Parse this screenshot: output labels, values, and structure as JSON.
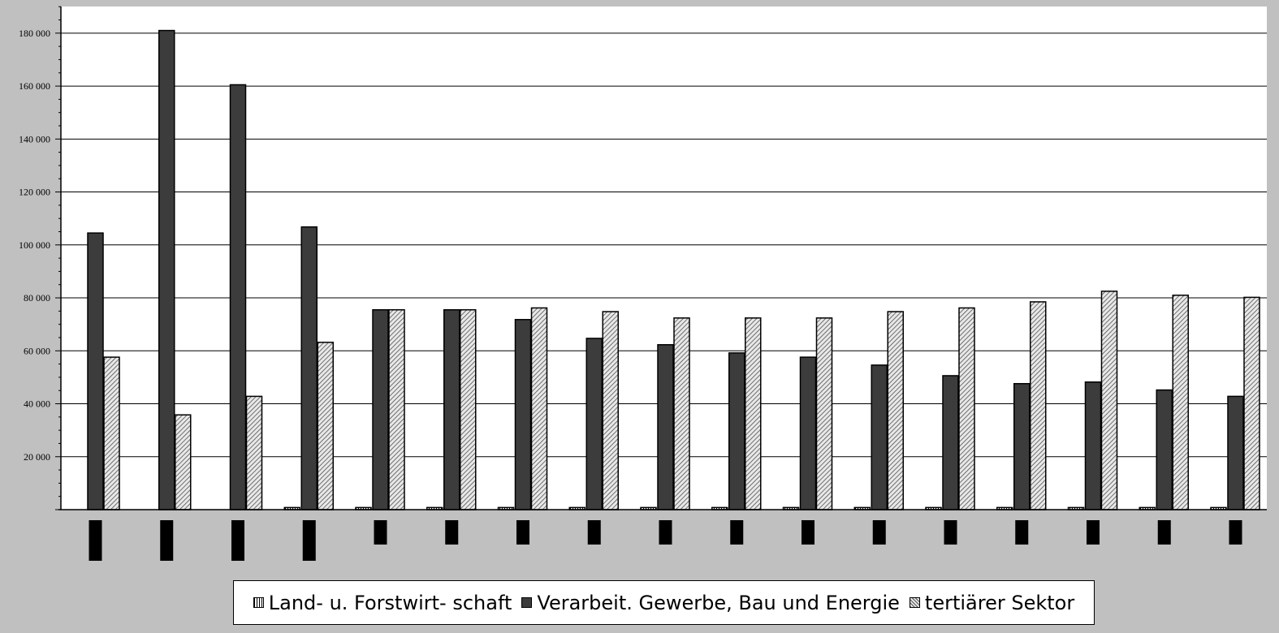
{
  "chart_data": {
    "type": "bar",
    "title": "",
    "xlabel": "",
    "ylabel": "",
    "ylim": [
      0,
      190000
    ],
    "y_ticks": [
      "20 000",
      "40 000",
      "60 000",
      "80 000",
      "100 000",
      "120 000",
      "140 000",
      "160 000",
      "180 000"
    ],
    "y_tick_values": [
      20000,
      40000,
      60000,
      80000,
      100000,
      120000,
      140000,
      160000,
      180000
    ],
    "grid": true,
    "legend_position": "bottom",
    "categories": [
      "",
      "",
      "",
      "",
      "",
      "",
      "",
      "",
      "",
      "",
      "",
      "",
      "",
      "",
      "",
      "",
      ""
    ],
    "series": [
      {
        "name": "Land- u.  Forstwirt- schaft",
        "color": "#ffffff",
        "pattern": "vertical-lines",
        "values": [
          0,
          0,
          0,
          800,
          800,
          800,
          800,
          800,
          800,
          800,
          800,
          800,
          800,
          800,
          800,
          800,
          800
        ]
      },
      {
        "name": "Verarbeit. Gewerbe, Bau und Energie",
        "color": "#3c3c3c",
        "pattern": "solid",
        "values": [
          104500,
          181000,
          160500,
          106800,
          75500,
          75500,
          71800,
          64700,
          62300,
          59200,
          57600,
          54600,
          50600,
          47600,
          48200,
          45200,
          42800
        ]
      },
      {
        "name": "tertiärer  Sektor",
        "color": "#d0d0d0",
        "pattern": "diagonal-hatch",
        "values": [
          57600,
          35800,
          42800,
          63200,
          75500,
          75500,
          76200,
          74800,
          72400,
          72400,
          72400,
          74800,
          76200,
          78500,
          82500,
          81000,
          80200
        ]
      }
    ]
  },
  "colors": {
    "background": "#c0c0c0",
    "plot_area": "#ffffff",
    "gridline": "#000000",
    "category_marker": "#000000"
  }
}
